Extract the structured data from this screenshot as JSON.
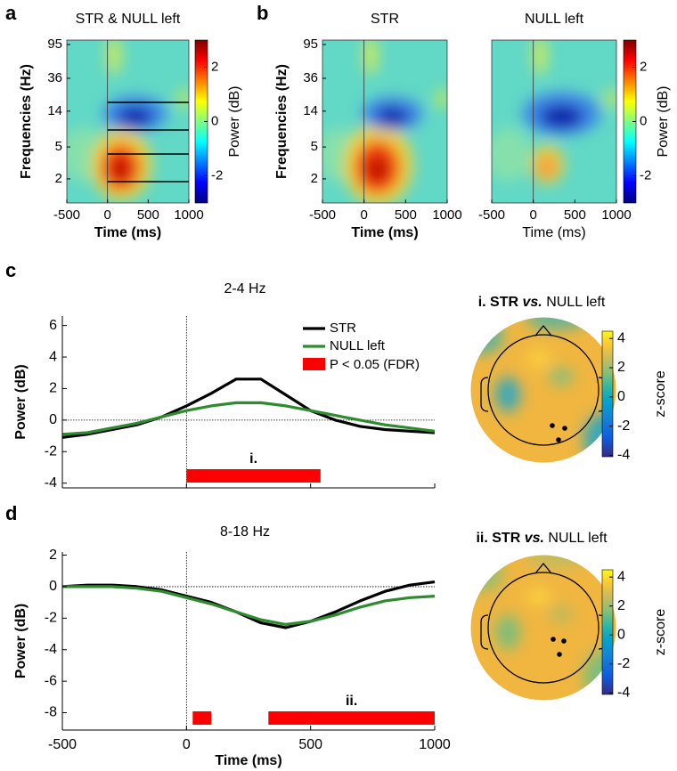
{
  "panel_labels": [
    "a",
    "b",
    "c",
    "d"
  ],
  "heatmap_axes": {
    "xlim": [
      -500,
      1000
    ],
    "xticks": [
      -500,
      0,
      500,
      1000
    ],
    "ylim": [
      1,
      108
    ],
    "log": true,
    "yticks": [
      95,
      36,
      14,
      5,
      2
    ],
    "xlabel": "Time (ms)",
    "ylabel": "Frequencies (Hz)"
  },
  "heatmaps": [
    {
      "title": "STR & NULL left"
    },
    {
      "title": "STR"
    },
    {
      "title": "NULL left"
    }
  ],
  "power_colorbar": {
    "label": "Power (dB)",
    "lim": [
      -3,
      3
    ],
    "ticks": [
      2,
      0,
      -2
    ]
  },
  "chart_data": [
    {
      "type": "line",
      "title": "2-4 Hz",
      "ylabel": "Power (dB)",
      "x": [
        -500,
        -400,
        -300,
        -200,
        -100,
        0,
        100,
        200,
        300,
        400,
        500,
        600,
        700,
        800,
        900,
        1000
      ],
      "series": [
        {
          "name": "STR",
          "color": "#000000",
          "values": [
            -1.1,
            -0.9,
            -0.6,
            -0.3,
            0.2,
            0.9,
            1.7,
            2.6,
            2.6,
            1.6,
            0.6,
            0.0,
            -0.4,
            -0.6,
            -0.7,
            -0.8
          ]
        },
        {
          "name": "NULL left",
          "color": "#2e8b2e",
          "values": [
            -0.9,
            -0.8,
            -0.5,
            -0.2,
            0.2,
            0.6,
            0.9,
            1.1,
            1.1,
            0.9,
            0.6,
            0.3,
            0.0,
            -0.3,
            -0.5,
            -0.7
          ]
        }
      ],
      "xlim": [
        -500,
        1000
      ],
      "xticks": [
        -500,
        0,
        500,
        1000
      ],
      "ylim": [
        -4.3,
        6.6
      ],
      "yticks": [
        6,
        4,
        2,
        0,
        -2,
        -4
      ],
      "significance": {
        "name": "P < 0.05 (FDR)",
        "color": "#ff0000",
        "intervals": [
          [
            0,
            540
          ]
        ],
        "label": "i."
      },
      "legend": true
    },
    {
      "type": "line",
      "title": "8-18 Hz",
      "ylabel": "Power (dB)",
      "xlabel": "Time (ms)",
      "x": [
        -500,
        -400,
        -300,
        -200,
        -100,
        0,
        100,
        200,
        300,
        400,
        500,
        600,
        700,
        800,
        900,
        1000
      ],
      "series": [
        {
          "name": "STR",
          "color": "#000000",
          "values": [
            0,
            0.1,
            0.1,
            0,
            -0.2,
            -0.6,
            -1.0,
            -1.6,
            -2.3,
            -2.6,
            -2.2,
            -1.6,
            -0.9,
            -0.3,
            0.1,
            0.3
          ]
        },
        {
          "name": "NULL left",
          "color": "#2e8b2e",
          "values": [
            0,
            0,
            0,
            -0.1,
            -0.3,
            -0.7,
            -1.1,
            -1.6,
            -2.1,
            -2.4,
            -2.2,
            -1.8,
            -1.3,
            -0.9,
            -0.7,
            -0.6
          ]
        }
      ],
      "xlim": [
        -500,
        1000
      ],
      "xticks": [
        -500,
        0,
        500,
        1000
      ],
      "ylim": [
        -9.1,
        2.2
      ],
      "yticks": [
        2,
        0,
        -2,
        -4,
        -6,
        -8
      ],
      "significance": {
        "color": "#ff0000",
        "intervals": [
          [
            25,
            100
          ],
          [
            330,
            1000
          ]
        ],
        "label": "ii."
      },
      "legend": false
    }
  ],
  "topomaps": [
    {
      "prefix": "i. STR",
      "vs": "vs.",
      "rest": "NULL left"
    },
    {
      "prefix": "ii. STR",
      "vs": "vs.",
      "rest": "NULL left"
    }
  ],
  "z_colorbar": {
    "label": "z-score",
    "lim": [
      -4.1,
      4.5
    ],
    "ticks": [
      4,
      2,
      0,
      -2,
      -4
    ]
  }
}
